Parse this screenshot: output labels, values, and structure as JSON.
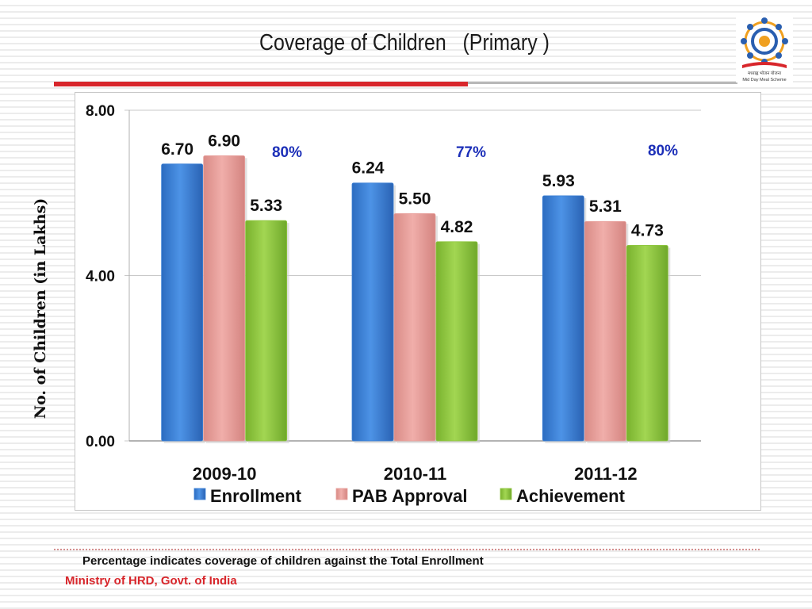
{
  "slide": {
    "title": "Coverage of Children   (Primary )",
    "footnote": "Percentage indicates coverage of children against the Total Enrollment",
    "source": "Ministry of HRD, Govt. of India",
    "accent_color": "#d8262b"
  },
  "logo": {
    "icon": "mid-day-meal-logo",
    "line1": "मध्याह्न भोजन योजना",
    "line2": "Mid Day Meal Scheme"
  },
  "chart_data": {
    "type": "bar",
    "title": "",
    "ylabel": "No. of Children (in Lakhs)",
    "xlabel": "",
    "ylim": [
      0,
      8
    ],
    "yticks": [
      "0.00",
      "4.00",
      "8.00"
    ],
    "grid": true,
    "legend_position": "bottom",
    "categories": [
      "2009-10",
      "2010-11",
      "2011-12"
    ],
    "series": [
      {
        "name": "Enrollment",
        "values": [
          6.7,
          6.24,
          5.93
        ],
        "labels": [
          "6.70",
          "6.24",
          "5.93"
        ],
        "color": "#3a7fd5"
      },
      {
        "name": "PAB Approval",
        "values": [
          6.9,
          5.5,
          5.31
        ],
        "labels": [
          "6.90",
          "5.50",
          "5.31"
        ],
        "color": "#e8a09c"
      },
      {
        "name": "Achievement",
        "values": [
          5.33,
          4.82,
          4.73
        ],
        "labels": [
          "5.33",
          "4.82",
          "4.73"
        ],
        "color": "#8ec63f"
      }
    ],
    "annotations": [
      "80%",
      "77%",
      "80%"
    ],
    "annotation_color": "#1c2fb8"
  }
}
